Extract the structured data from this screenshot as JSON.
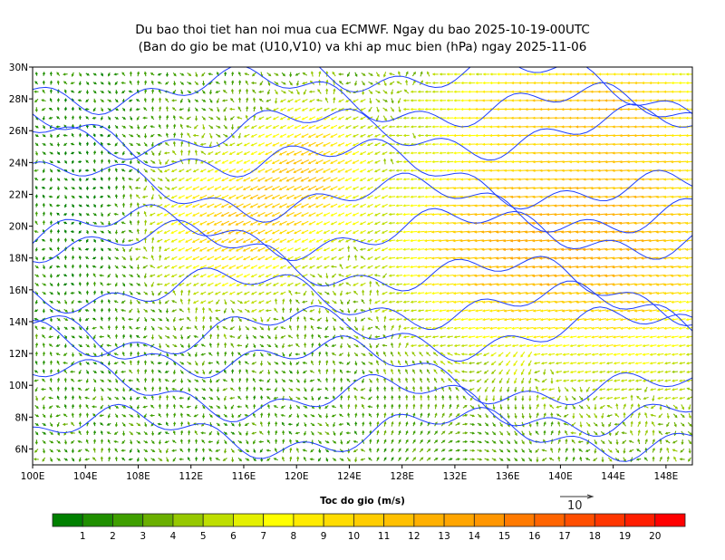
{
  "title": {
    "line1": "Du bao thoi tiet han noi mua cua ECMWF. Ngay du bao 2025-10-19-00UTC",
    "line2": "(Ban do gio be mat (U10,V10) va khi ap muc bien (hPa) ngay 2025-11-06"
  },
  "map": {
    "lon_range": [
      100,
      150
    ],
    "lat_range": [
      5,
      30
    ],
    "lon_ticks": [
      "100E",
      "104E",
      "108E",
      "112E",
      "116E",
      "120E",
      "124E",
      "128E",
      "132E",
      "136E",
      "140E",
      "144E",
      "148E"
    ],
    "lat_ticks": [
      "6N",
      "8N",
      "10N",
      "12N",
      "14N",
      "16N",
      "18N",
      "20N",
      "22N",
      "24N",
      "26N",
      "28N",
      "30N"
    ],
    "isobar_color": "#1f3fff"
  },
  "colorbar": {
    "title": "Toc do gio (m/s)",
    "labels": [
      "1",
      "2",
      "3",
      "4",
      "5",
      "6",
      "7",
      "8",
      "9",
      "10",
      "11",
      "12",
      "13",
      "14",
      "15",
      "16",
      "17",
      "18",
      "19",
      "20"
    ],
    "colors": [
      "#008000",
      "#1f8f00",
      "#3f9f00",
      "#6aaf00",
      "#96c800",
      "#bede00",
      "#e4f000",
      "#ffff00",
      "#ffeb00",
      "#ffdc00",
      "#ffcd00",
      "#ffc000",
      "#ffb000",
      "#ffa500",
      "#ff9600",
      "#ff7a00",
      "#ff6400",
      "#ff4e00",
      "#ff3600",
      "#ff1e00",
      "#ff0000"
    ]
  },
  "reference_vector": {
    "label": "10"
  }
}
